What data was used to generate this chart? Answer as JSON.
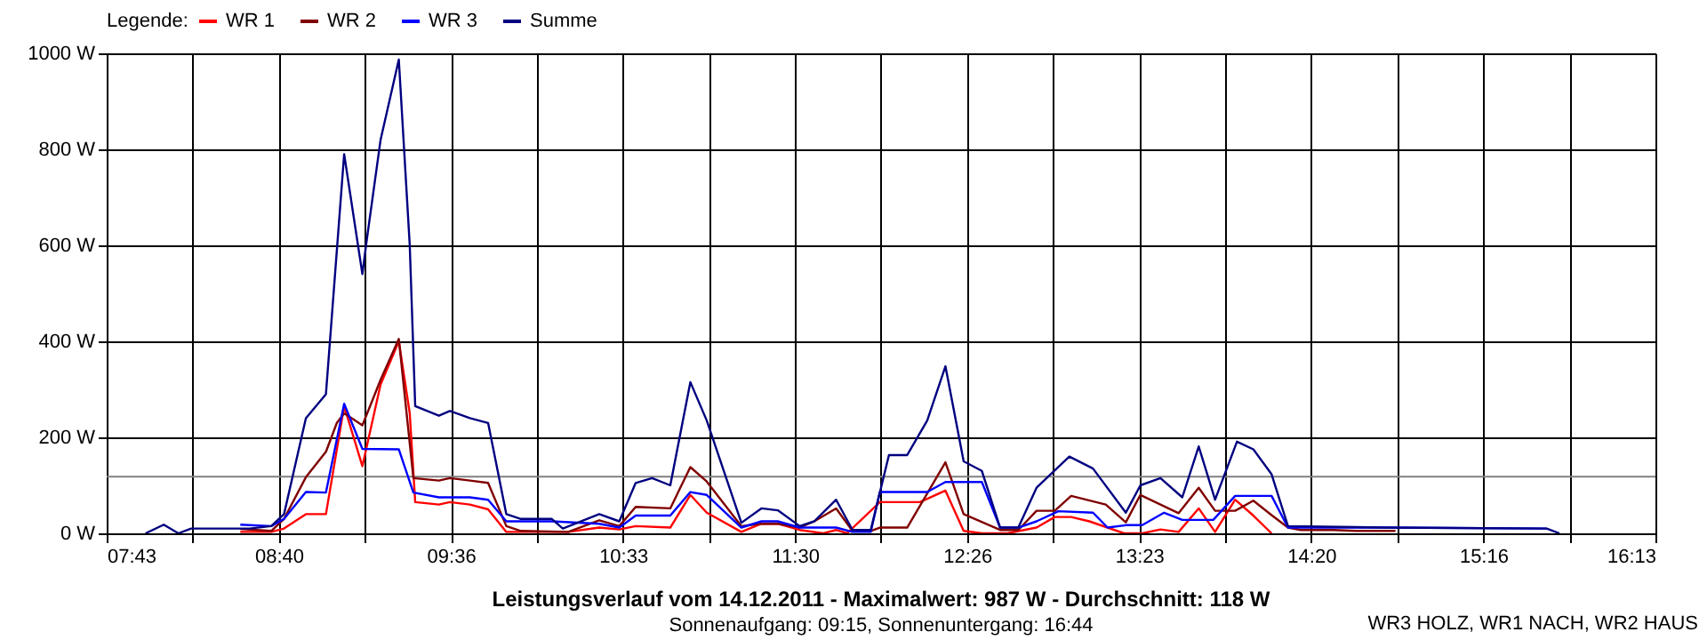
{
  "chart_data": {
    "type": "line",
    "title": "Leistungsverlauf vom 14.12.2011 - Maximalwert: 987 W - Durchschnitt: 118 W",
    "subtitle": "Sonnenaufgang: 09:15, Sonnenuntergang: 16:44",
    "legend_title": "Legende:",
    "legend": "top left",
    "grid": true,
    "line_style": "solid",
    "marker": "none",
    "annotations": [
      "WR3 HOLZ, WR1 NACH, WR2 HAUS"
    ],
    "xlim": [
      7.7167,
      16.2167
    ],
    "ylim": [
      0,
      1000
    ],
    "xticks": [
      {
        "value": 7.7167,
        "label": "07:43"
      },
      {
        "value": 8.1889,
        "label": null
      },
      {
        "value": 8.6611,
        "label": "08:40"
      },
      {
        "value": 9.1333,
        "label": null
      },
      {
        "value": 9.6056,
        "label": "09:36"
      },
      {
        "value": 10.0778,
        "label": null
      },
      {
        "value": 10.55,
        "label": "10:33"
      },
      {
        "value": 11.0222,
        "label": null
      },
      {
        "value": 11.4944,
        "label": "11:30"
      },
      {
        "value": 11.9667,
        "label": null
      },
      {
        "value": 12.4389,
        "label": "12:26"
      },
      {
        "value": 12.9111,
        "label": null
      },
      {
        "value": 13.3833,
        "label": "13:23"
      },
      {
        "value": 13.8556,
        "label": null
      },
      {
        "value": 14.3278,
        "label": "14:20"
      },
      {
        "value": 14.8,
        "label": null
      },
      {
        "value": 15.2722,
        "label": "15:16"
      },
      {
        "value": 15.7444,
        "label": null
      },
      {
        "value": 16.2167,
        "label": "16:13"
      }
    ],
    "yticks": [
      {
        "value": 0,
        "label": "0 W"
      },
      {
        "value": 200,
        "label": "200 W"
      },
      {
        "value": 400,
        "label": "400 W"
      },
      {
        "value": 600,
        "label": "600 W"
      },
      {
        "value": 800,
        "label": "800 W"
      },
      {
        "value": 1000,
        "label": "1000 W"
      }
    ],
    "ref_lines": [
      {
        "axis": "y",
        "value": 118,
        "color": "#808080"
      }
    ],
    "series": [
      {
        "name": "WR 1",
        "color": "#ff0000",
        "x": [
          8.45,
          8.62,
          8.69,
          8.81,
          8.92,
          9.02,
          9.12,
          9.22,
          9.32,
          9.38,
          9.41,
          9.54,
          9.6,
          9.71,
          9.81,
          9.91,
          10.25,
          10.42,
          10.53,
          10.62,
          10.81,
          10.92,
          11.01,
          11.2,
          11.31,
          11.4,
          11.52,
          11.65,
          11.72,
          11.78,
          11.96,
          12.18,
          12.32,
          12.42,
          12.52,
          12.66,
          12.82,
          12.92,
          13.01,
          13.11,
          13.3,
          13.4,
          13.5,
          13.6,
          13.71,
          13.8,
          13.91,
          14.01,
          14.11
        ],
        "values": [
          3,
          3,
          10,
          40,
          40,
          265,
          140,
          310,
          400,
          250,
          65,
          60,
          65,
          60,
          50,
          3,
          3,
          12,
          8,
          15,
          12,
          80,
          43,
          3,
          20,
          20,
          7,
          0,
          7,
          0,
          65,
          65,
          89,
          5,
          0,
          0,
          12,
          34,
          34,
          25,
          0,
          0,
          8,
          3,
          52,
          3,
          70,
          37,
          0
        ]
      },
      {
        "name": "WR 2",
        "color": "#800000",
        "x": [
          8.45,
          8.62,
          8.69,
          8.81,
          8.92,
          8.98,
          9.02,
          9.08,
          9.12,
          9.22,
          9.32,
          9.4,
          9.54,
          9.6,
          9.71,
          9.81,
          9.91,
          9.99,
          10.25,
          10.42,
          10.53,
          10.62,
          10.81,
          10.92,
          11.01,
          11.2,
          11.31,
          11.4,
          11.52,
          11.6,
          11.72,
          11.81,
          11.91,
          11.96,
          12.11,
          12.32,
          12.42,
          12.62,
          12.72,
          12.82,
          12.92,
          13.01,
          13.2,
          13.31,
          13.39,
          13.6,
          13.71,
          13.8,
          13.91,
          14.01,
          14.11,
          14.2,
          14.27,
          14.45,
          14.57,
          14.79
        ],
        "values": [
          9,
          5,
          30,
          117,
          170,
          230,
          250,
          235,
          225,
          320,
          405,
          115,
          110,
          115,
          110,
          105,
          15,
          5,
          3,
          27,
          15,
          55,
          52,
          138,
          108,
          15,
          20,
          20,
          12,
          25,
          52,
          5,
          5,
          12,
          12,
          148,
          40,
          7,
          7,
          47,
          47,
          78,
          60,
          23,
          80,
          42,
          95,
          47,
          47,
          68,
          38,
          12,
          7,
          7,
          5,
          5
        ]
      },
      {
        "name": "WR 3",
        "color": "#0000ff",
        "x": [
          8.45,
          8.62,
          8.69,
          8.81,
          8.92,
          9.02,
          9.12,
          9.32,
          9.4,
          9.54,
          9.71,
          9.81,
          9.91,
          10.16,
          10.42,
          10.53,
          10.62,
          10.81,
          10.92,
          11.01,
          11.2,
          11.31,
          11.4,
          11.52,
          11.72,
          11.81,
          11.91,
          11.96,
          12.22,
          12.32,
          12.52,
          12.62,
          12.72,
          12.82,
          12.94,
          13.13,
          13.21,
          13.31,
          13.4,
          13.52,
          13.62,
          13.79,
          13.91,
          14.11,
          14.2,
          14.74,
          15.62
        ],
        "values": [
          18,
          15,
          30,
          86,
          85,
          270,
          176,
          175,
          85,
          75,
          75,
          70,
          25,
          25,
          20,
          12,
          37,
          37,
          86,
          80,
          12,
          25,
          25,
          12,
          12,
          3,
          3,
          86,
          86,
          107,
          107,
          12,
          12,
          25,
          46,
          43,
          12,
          17,
          17,
          43,
          28,
          28,
          78,
          78,
          12,
          12,
          10
        ]
      },
      {
        "name": "Summe",
        "color": "#000080",
        "x": [
          7.93,
          8.03,
          8.11,
          8.18,
          8.5,
          8.62,
          8.69,
          8.81,
          8.92,
          9.02,
          9.12,
          9.14,
          9.22,
          9.32,
          9.38,
          9.41,
          9.54,
          9.6,
          9.71,
          9.81,
          9.91,
          9.99,
          10.16,
          10.22,
          10.42,
          10.53,
          10.62,
          10.71,
          10.81,
          10.92,
          11.01,
          11.2,
          11.31,
          11.4,
          11.52,
          11.6,
          11.72,
          11.81,
          11.91,
          12.01,
          12.11,
          12.22,
          12.32,
          12.42,
          12.52,
          12.62,
          12.72,
          12.82,
          13.0,
          13.13,
          13.31,
          13.39,
          13.5,
          13.62,
          13.71,
          13.8,
          13.92,
          14.01,
          14.11,
          14.2,
          14.74,
          15.62,
          15.69
        ],
        "values": [
          0,
          18,
          0,
          10,
          10,
          15,
          40,
          240,
          290,
          790,
          540,
          600,
          820,
          987,
          600,
          265,
          245,
          255,
          240,
          230,
          40,
          30,
          30,
          10,
          40,
          25,
          105,
          115,
          100,
          315,
          235,
          22,
          52,
          48,
          15,
          25,
          70,
          7,
          7,
          163,
          163,
          235,
          348,
          150,
          130,
          12,
          12,
          95,
          160,
          135,
          43,
          100,
          115,
          75,
          181,
          70,
          191,
          175,
          123,
          15,
          12,
          10,
          0
        ]
      }
    ]
  }
}
